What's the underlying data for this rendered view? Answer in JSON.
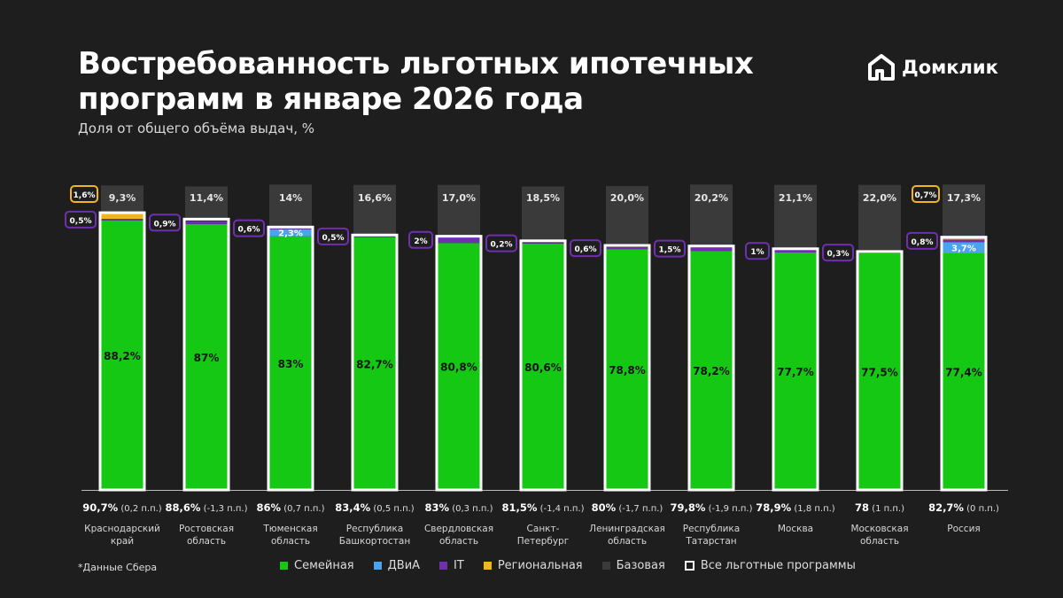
{
  "header": {
    "title": "Востребованность льготных ипотечных программ в январе 2026 года",
    "subtitle": "Доля от общего объёма выдач, %"
  },
  "logo": {
    "text": "Домклик",
    "icon": "domclick-house-icon"
  },
  "footnote": "*Данные Сбера",
  "legend": [
    {
      "label": "Семейная",
      "color": "#14c814",
      "kind": "fill"
    },
    {
      "label": "ДВиА",
      "color": "#4aa3ee",
      "kind": "fill"
    },
    {
      "label": "IT",
      "color": "#6f2fb0",
      "kind": "fill"
    },
    {
      "label": "Региональная",
      "color": "#f2b41f",
      "kind": "fill"
    },
    {
      "label": "Базовая",
      "color": "#3a3a3a",
      "kind": "fill"
    },
    {
      "label": "Все льготные программы",
      "color": "#ffffff",
      "kind": "outline"
    }
  ],
  "chart_data": {
    "type": "bar",
    "stacked": true,
    "ylim": [
      0,
      100
    ],
    "grid": false,
    "legend_position": "bottom",
    "categories": [
      {
        "name": "Краснодарский край",
        "lines": [
          "Краснодарский",
          "край"
        ]
      },
      {
        "name": "Ростовская область",
        "lines": [
          "Ростовская",
          "область"
        ]
      },
      {
        "name": "Тюменская область",
        "lines": [
          "Тюменская",
          "область"
        ]
      },
      {
        "name": "Республика Башкортостан",
        "lines": [
          "Республика",
          "Башкортостан"
        ]
      },
      {
        "name": "Свердловская область",
        "lines": [
          "Свердловская",
          "область"
        ]
      },
      {
        "name": "Санкт-Петербург",
        "lines": [
          "Санкт-",
          "Петербург"
        ]
      },
      {
        "name": "Ленинградская область",
        "lines": [
          "Ленинградская",
          "область"
        ]
      },
      {
        "name": "Республика Татарстан",
        "lines": [
          "Республика",
          "Татарстан"
        ]
      },
      {
        "name": "Москва",
        "lines": [
          "Москва"
        ]
      },
      {
        "name": "Московская область",
        "lines": [
          "Московская",
          "область"
        ]
      },
      {
        "name": "Россия",
        "lines": [
          "Россия"
        ]
      }
    ],
    "series": [
      {
        "name": "Семейная",
        "color": "#14c814",
        "values": [
          88.2,
          87,
          83,
          82.7,
          80.8,
          80.6,
          78.8,
          78.2,
          77.7,
          77.5,
          77.4
        ],
        "labels": [
          "88,2%",
          "87%",
          "83%",
          "82,7%",
          "80,8%",
          "80,6%",
          "78,8%",
          "78,2%",
          "77,7%",
          "77,5%",
          "77,4%"
        ]
      },
      {
        "name": "ДВиА",
        "color": "#4aa3ee",
        "values": [
          0,
          0,
          2.3,
          0,
          0,
          0,
          0,
          0,
          0,
          0,
          3.7
        ],
        "labels": [
          "",
          "",
          "2,3%",
          "",
          "",
          "",
          "",
          "",
          "",
          "",
          "3,7%"
        ]
      },
      {
        "name": "IT",
        "color": "#6f2fb0",
        "values": [
          0.5,
          0.9,
          0.6,
          0.5,
          2,
          0.2,
          0.6,
          1.5,
          1,
          0.3,
          0.8
        ],
        "labels": [
          "0,5%",
          "0,9%",
          "0,6%",
          "0,5%",
          "2%",
          "0,2%",
          "0,6%",
          "1,5%",
          "1%",
          "0,3%",
          "0,8%"
        ]
      },
      {
        "name": "Региональная",
        "color": "#f2b41f",
        "values": [
          1.6,
          0,
          0,
          0,
          0,
          0,
          0,
          0,
          0,
          0,
          0.7
        ],
        "labels": [
          "1,6%",
          "",
          "",
          "",
          "",
          "",
          "",
          "",
          "",
          "",
          "0,7%"
        ]
      },
      {
        "name": "Базовая",
        "color": "#3a3a3a",
        "values": [
          9.3,
          11.4,
          14,
          16.6,
          17.0,
          18.5,
          20.0,
          20.2,
          21.1,
          22.0,
          17.3
        ],
        "labels": [
          "9,3%",
          "11,4%",
          "14%",
          "16,6%",
          "17,0%",
          "18,5%",
          "20,0%",
          "20,2%",
          "21,1%",
          "22,0%",
          "17,3%"
        ]
      }
    ],
    "totals": {
      "name": "Все льготные программы",
      "values": [
        90.7,
        88.6,
        86,
        83.4,
        83,
        81.5,
        80,
        79.8,
        78.9,
        78,
        82.7
      ],
      "labels": [
        "90,7%",
        "88,6%",
        "86%",
        "83,4%",
        "83%",
        "81,5%",
        "80%",
        "79,8%",
        "78,9%",
        "78",
        "82,7%"
      ],
      "changes": [
        "(0,2 п.п.)",
        "(-1,3 п.п.)",
        "(0,7 п.п.)",
        "(0,5 п.п.)",
        "(0,3 п.п.)",
        "(-1,4 п.п.)",
        "(-1,7 п.п.)",
        "(-1,9 п.п.)",
        "(1,8 п.п.)",
        "(1 п.п.)",
        "(0 п.п.)"
      ]
    }
  }
}
